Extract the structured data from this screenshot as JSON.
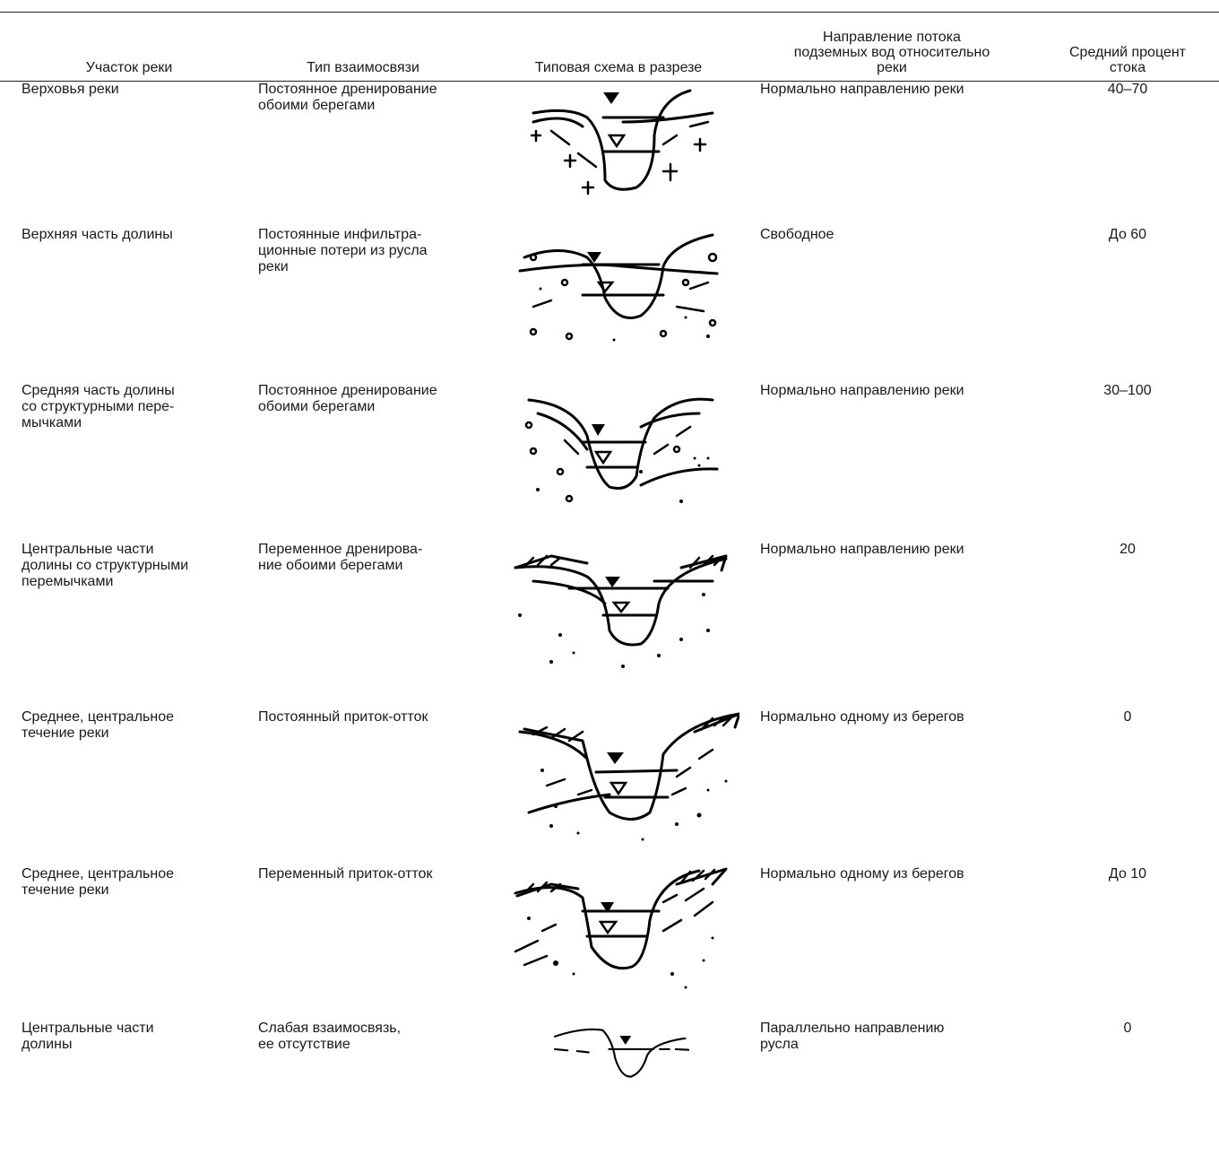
{
  "table": {
    "headers": [
      "Участок реки",
      "Тип взаимосвязи",
      "Типовая схема в разрезе",
      "Направление потока\nподземных вод относительно\nреки",
      "Средний процент\nстока"
    ],
    "rows": [
      {
        "section": "Верховья реки",
        "type": "Постоянное дренирование\nобоими берегами",
        "direction": "Нормально направлению реки",
        "percent": "40–70",
        "diagram": "scheme-1"
      },
      {
        "section": "Верхняя часть долины",
        "type": "Постоянные инфильтра-\nционные потери из русла\nреки",
        "direction": "Свободное",
        "percent": "До 60",
        "diagram": "scheme-2"
      },
      {
        "section": "Средняя часть долины\nсо структурными пере-\nмычками",
        "type": "Постоянное дренирование\nобоими берегами",
        "direction": "Нормально направлению реки",
        "percent": "30–100",
        "diagram": "scheme-3"
      },
      {
        "section": "Центральные части\nдолины со структурными\nперемычками",
        "type": "Переменное дренирова-\nние обоими берегами",
        "direction": "Нормально направлению реки",
        "percent": "20",
        "diagram": "scheme-4"
      },
      {
        "section": "Среднее, центральное\nтечение реки",
        "type": "Постоянный приток-отток",
        "direction": "Нормально одному из берегов",
        "percent": "0",
        "diagram": "scheme-5"
      },
      {
        "section": "Среднее, центральное\nтечение реки",
        "type": "Переменный приток-отток",
        "direction": "Нормально одному из берегов",
        "percent": "До 10",
        "diagram": "scheme-6"
      },
      {
        "section": "Центральные части\nдолины",
        "type": "Слабая взаимосвязь,\nее отсутствие",
        "direction": "Параллельно направлению\nрусла",
        "percent": "0",
        "diagram": "scheme-7"
      }
    ]
  }
}
